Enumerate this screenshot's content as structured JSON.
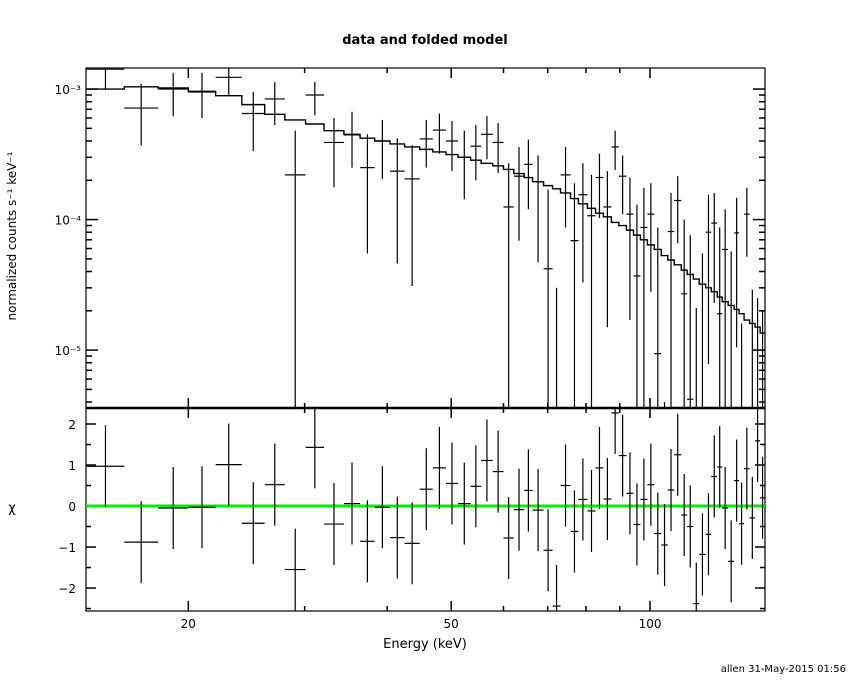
{
  "chart_data": [
    {
      "type": "scatter",
      "panel": "top",
      "title": "data and folded model",
      "ylabel": "normalized counts s⁻¹ keV⁻¹",
      "yscale": "log",
      "xscale": "log",
      "xlim": [
        14.0,
        149.3
      ],
      "ylim": [
        3.6e-06,
        0.00145
      ],
      "y_ticks": [
        {
          "value": 0.001,
          "label": "10⁻³"
        },
        {
          "value": 0.0001,
          "label": "10⁻⁴"
        },
        {
          "value": 1e-05,
          "label": "10⁻⁵"
        }
      ],
      "bin_edges_keV": [
        14.03,
        16.0,
        18.0,
        20.0,
        22.0,
        24.1,
        26.1,
        28.0,
        30.1,
        32.1,
        34.4,
        36.4,
        38.3,
        40.4,
        42.5,
        44.8,
        46.9,
        49.1,
        51.2,
        53.5,
        55.5,
        57.8,
        60.0,
        62.2,
        64.5,
        66.4,
        69.0,
        71.2,
        73.2,
        75.8,
        77.9,
        80.4,
        82.7,
        85.0,
        87.4,
        89.7,
        92.1,
        94.4,
        96.7,
        99.1,
        101.5,
        104.0,
        106.4,
        108.8,
        111.5,
        113.8,
        116.3,
        118.7,
        121.4,
        123.8,
        126.4,
        128.6,
        131.3,
        134.1,
        136.4,
        138.8,
        141.5,
        144.2,
        146.8,
        149.3
      ],
      "data_y": [
        0.00142,
        0.000715,
        0.001,
        0.00095,
        0.00123,
        0.00065,
        0.00084,
        0.00022,
        0.0009,
        0.00039,
        0.000445,
        0.00025,
        0.0004,
        0.000235,
        0.000205,
        0.000415,
        0.000485,
        0.0004,
        0.0003,
        0.000365,
        0.00045,
        0.00039,
        0.000125,
        0.000215,
        0.000265,
        0.000195,
        4.2e-05,
        null,
        0.00022,
        6.9e-05,
        0.000155,
        0.000107,
        0.00021,
        0.000125,
        0.00036,
        0.000215,
        0.00011,
        3.7e-05,
        8.7e-05,
        0.00011,
        9.4e-06,
        null,
        8.1e-05,
        0.00014,
        2.7e-05,
        4.2e-06,
        null,
        null,
        8e-05,
        9.4e-05,
        1.9e-05,
        5.9e-05,
        null,
        7.9e-05,
        null,
        0.00011,
        null,
        null,
        null
      ],
      "data_y_low": [
        0.001,
        0.00037,
        0.00062,
        0.0006,
        0.0009,
        0.000335,
        0.00053,
        null,
        0.00063,
        0.000177,
        0.00025,
        5.5e-05,
        0.000205,
        4.6e-05,
        3.1e-05,
        0.00025,
        0.00032,
        0.000235,
        0.000143,
        0.0002,
        0.00029,
        0.000227,
        null,
        6.9e-05,
        0.00012,
        4.7e-05,
        null,
        null,
        8.7e-05,
        null,
        3.3e-05,
        null,
        0.000103,
        1.5e-05,
        0.00024,
        0.00011,
        1.7e-05,
        null,
        null,
        2.8e-05,
        null,
        null,
        null,
        6.6e-05,
        null,
        null,
        null,
        null,
        7.8e-06,
        2.3e-05,
        null,
        null,
        null,
        1.05e-05,
        null,
        5.2e-05,
        null,
        null,
        null
      ],
      "data_y_high": [
        0.0019,
        0.0011,
        0.00133,
        0.00133,
        0.0015,
        0.00095,
        0.00113,
        0.00048,
        0.00113,
        0.0006,
        0.00067,
        0.00045,
        0.00058,
        0.00042,
        0.00037,
        0.00058,
        0.00065,
        0.00057,
        0.00048,
        0.00053,
        0.00062,
        0.00055,
        0.00027,
        0.00036,
        0.00041,
        0.00031,
        0.00017,
        3e-05,
        0.00036,
        0.00019,
        0.00027,
        0.00022,
        0.00032,
        0.000235,
        0.00048,
        0.00031,
        0.00021,
        0.00013,
        0.000175,
        0.00019,
        8.7e-05,
        4e-06,
        0.00016,
        0.000215,
        0.0001,
        7.6e-05,
        2.1e-05,
        5.5e-05,
        0.000155,
        0.00016,
        8.7e-05,
        0.00012,
        5.7e-05,
        0.000147,
        1.6e-05,
        0.000175,
        2.9e-05,
        2.5e-05,
        2e-05
      ],
      "model_y": [
        0.001,
        0.00104,
        0.00102,
        0.00096,
        0.00089,
        0.00076,
        0.00064,
        0.00058,
        0.00054,
        0.00048,
        0.00045,
        0.00042,
        0.0004,
        0.00038,
        0.00036,
        0.000345,
        0.00033,
        0.000315,
        0.0003,
        0.000285,
        0.00027,
        0.000258,
        0.000242,
        0.000225,
        0.00021,
        0.000195,
        0.000182,
        0.000172,
        0.00016,
        0.000145,
        0.000132,
        0.000122,
        0.000112,
        0.000105,
        9.5e-05,
        9e-05,
        8.3e-05,
        7.6e-05,
        7e-05,
        6.4e-05,
        5.9e-05,
        5.3e-05,
        4.9e-05,
        4.5e-05,
        4.1e-05,
        3.8e-05,
        3.5e-05,
        3.2e-05,
        3e-05,
        2.8e-05,
        2.55e-05,
        2.35e-05,
        2.2e-05,
        2.05e-05,
        1.9e-05,
        1.7e-05,
        1.6e-05,
        1.5e-05,
        1.35e-05
      ],
      "colors": {
        "data": "#000000",
        "model": "#000000"
      }
    },
    {
      "type": "scatter",
      "panel": "bottom",
      "ylabel": "χ",
      "xlabel": "Energy (keV)",
      "xscale": "log",
      "xlim": [
        14.0,
        149.3
      ],
      "ylim": [
        -2.56,
        2.39
      ],
      "x_ticks": [
        {
          "value": 20,
          "label": "20"
        },
        {
          "value": 50,
          "label": "50"
        },
        {
          "value": 100,
          "label": "100"
        }
      ],
      "y_ticks": [
        {
          "value": -2,
          "label": "−2"
        },
        {
          "value": -1,
          "label": "−1"
        },
        {
          "value": 0,
          "label": "0"
        },
        {
          "value": 1,
          "label": "1"
        },
        {
          "value": 2,
          "label": "2"
        }
      ],
      "chi": [
        0.97,
        -0.88,
        -0.05,
        -0.03,
        1.01,
        -0.42,
        0.52,
        -1.55,
        1.43,
        -0.44,
        0.06,
        -0.86,
        -0.03,
        -0.77,
        -0.91,
        0.41,
        0.93,
        0.55,
        0.06,
        0.48,
        1.11,
        0.84,
        -0.78,
        -0.09,
        0.38,
        -0.1,
        -1.08,
        -2.44,
        0.5,
        -0.62,
        0.16,
        -0.12,
        0.93,
        0.17,
        2.27,
        1.23,
        0.31,
        -0.45,
        0.16,
        0.52,
        -0.67,
        -0.95,
        0.39,
        1.25,
        -0.22,
        -0.5,
        -2.38,
        -1.18,
        -0.69,
        0.72,
        0.95,
        -0.05,
        -1.35,
        0.62,
        -0.43,
        0.91,
        -0.29,
        1.59,
        0.2
      ],
      "chi_error": 1,
      "zero_line": 0,
      "colors": {
        "zero_line": "#00ee00",
        "data": "#000000"
      }
    }
  ],
  "footer": "allen 31-May-2015 01:56"
}
